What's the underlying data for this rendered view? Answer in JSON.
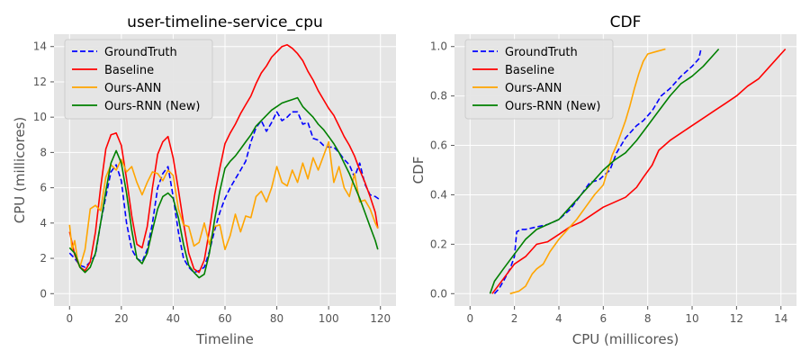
{
  "chart_data": [
    {
      "type": "line",
      "title": "user-timeline-service_cpu",
      "xlabel": "Timeline",
      "ylabel": "CPU (millicores)",
      "xlim": [
        -6,
        126
      ],
      "ylim": [
        -0.7,
        14.7
      ],
      "xticks": [
        0,
        20,
        40,
        60,
        80,
        100,
        120
      ],
      "yticks": [
        0,
        2,
        4,
        6,
        8,
        10,
        12,
        14
      ],
      "grid": true,
      "legend_position": "top-left",
      "series": [
        {
          "name": "GroundTruth",
          "color": "#0000ff",
          "dash": "dashed",
          "x": [
            0,
            2,
            4,
            6,
            8,
            10,
            12,
            14,
            16,
            18,
            20,
            22,
            24,
            26,
            28,
            30,
            32,
            34,
            36,
            38,
            40,
            42,
            44,
            46,
            48,
            50,
            52,
            54,
            56,
            58,
            60,
            62,
            64,
            66,
            68,
            70,
            72,
            74,
            76,
            78,
            80,
            82,
            84,
            86,
            88,
            90,
            92,
            94,
            96,
            98,
            100,
            102,
            104,
            106,
            108,
            110,
            112,
            114,
            116,
            118,
            120
          ],
          "y": [
            2.3,
            2.0,
            1.6,
            1.5,
            1.8,
            2.2,
            4.0,
            5.5,
            6.9,
            7.3,
            6.4,
            4.0,
            2.5,
            2.0,
            1.8,
            2.5,
            4.0,
            6.0,
            6.8,
            7.2,
            5.5,
            3.5,
            2.0,
            1.5,
            1.2,
            1.3,
            1.5,
            2.4,
            3.6,
            4.6,
            5.4,
            6.0,
            6.5,
            7.0,
            7.5,
            8.6,
            9.4,
            9.8,
            9.2,
            9.7,
            10.3,
            9.8,
            10.0,
            10.3,
            10.3,
            9.6,
            9.7,
            8.8,
            8.7,
            8.4,
            8.3,
            8.3,
            8.0,
            7.6,
            7.3,
            6.6,
            7.4,
            6.2,
            5.6,
            5.5,
            5.3
          ]
        },
        {
          "name": "Baseline",
          "color": "#ff0000",
          "dash": "solid",
          "x": [
            0,
            2,
            4,
            6,
            8,
            10,
            12,
            14,
            16,
            18,
            20,
            22,
            24,
            26,
            28,
            30,
            32,
            34,
            36,
            38,
            40,
            42,
            44,
            46,
            48,
            50,
            52,
            54,
            56,
            58,
            60,
            62,
            64,
            66,
            68,
            70,
            72,
            74,
            76,
            78,
            80,
            82,
            84,
            86,
            88,
            90,
            92,
            94,
            96,
            98,
            100,
            102,
            104,
            106,
            108,
            110,
            112,
            114,
            116,
            118,
            119
          ],
          "y": [
            3.5,
            2.2,
            1.5,
            1.3,
            1.8,
            3.5,
            6.0,
            8.2,
            9.0,
            9.1,
            8.4,
            6.5,
            4.4,
            2.8,
            2.6,
            3.8,
            6.0,
            7.9,
            8.6,
            8.9,
            7.7,
            5.9,
            4.0,
            2.3,
            1.4,
            1.2,
            1.9,
            3.6,
            5.6,
            7.1,
            8.5,
            9.1,
            9.6,
            10.2,
            10.7,
            11.2,
            11.9,
            12.5,
            12.9,
            13.4,
            13.7,
            14.0,
            14.1,
            13.9,
            13.6,
            13.2,
            12.6,
            12.1,
            11.5,
            11.0,
            10.5,
            10.1,
            9.5,
            8.9,
            8.4,
            7.8,
            7.0,
            6.3,
            5.5,
            4.6,
            3.7
          ]
        },
        {
          "name": "Ours-ANN",
          "color": "#ffa500",
          "dash": "solid",
          "x": [
            0,
            1,
            2,
            3,
            4,
            6,
            8,
            10,
            12,
            14,
            16,
            18,
            20,
            22,
            24,
            26,
            28,
            30,
            32,
            34,
            36,
            38,
            40,
            42,
            44,
            46,
            48,
            50,
            52,
            54,
            56,
            58,
            60,
            62,
            64,
            66,
            68,
            70,
            72,
            74,
            76,
            78,
            80,
            82,
            84,
            86,
            88,
            90,
            92,
            94,
            96,
            98,
            100,
            102,
            104,
            106,
            108,
            110,
            112,
            114,
            116,
            118,
            119
          ],
          "y": [
            3.9,
            2.5,
            3.0,
            2.0,
            1.5,
            2.5,
            4.8,
            5.0,
            4.7,
            6.6,
            7.3,
            7.0,
            7.6,
            6.9,
            7.2,
            6.3,
            5.6,
            6.3,
            6.9,
            6.8,
            6.4,
            7.0,
            6.7,
            4.8,
            3.9,
            3.8,
            2.7,
            2.9,
            4.0,
            2.8,
            3.8,
            3.9,
            2.5,
            3.3,
            4.5,
            3.5,
            4.4,
            4.3,
            5.5,
            5.8,
            5.2,
            6.0,
            7.2,
            6.3,
            6.1,
            7.0,
            6.3,
            7.4,
            6.5,
            7.7,
            7.0,
            7.8,
            8.6,
            6.3,
            7.2,
            6.0,
            5.5,
            6.8,
            5.2,
            5.3,
            4.8,
            4.0,
            3.7
          ]
        },
        {
          "name": "Ours-RNN (New)",
          "color": "#008000",
          "dash": "solid",
          "x": [
            0,
            2,
            4,
            6,
            8,
            10,
            12,
            14,
            16,
            18,
            20,
            22,
            24,
            26,
            28,
            30,
            32,
            34,
            36,
            38,
            40,
            42,
            44,
            46,
            48,
            50,
            52,
            54,
            56,
            58,
            60,
            62,
            64,
            66,
            68,
            70,
            72,
            74,
            76,
            78,
            80,
            82,
            84,
            86,
            88,
            90,
            92,
            94,
            96,
            98,
            100,
            102,
            104,
            106,
            108,
            110,
            112,
            114,
            116,
            118,
            119
          ],
          "y": [
            2.6,
            2.3,
            1.5,
            1.2,
            1.5,
            2.3,
            4.0,
            5.8,
            7.4,
            8.1,
            7.4,
            5.7,
            3.6,
            2.0,
            1.7,
            2.3,
            3.6,
            4.8,
            5.5,
            5.7,
            5.4,
            4.3,
            2.8,
            1.6,
            1.2,
            0.9,
            1.1,
            2.3,
            4.2,
            5.8,
            7.1,
            7.5,
            7.8,
            8.2,
            8.6,
            9.0,
            9.5,
            9.8,
            10.1,
            10.4,
            10.6,
            10.8,
            10.9,
            11.0,
            11.1,
            10.6,
            10.3,
            10.0,
            9.6,
            9.3,
            8.9,
            8.5,
            8.0,
            7.4,
            6.8,
            6.1,
            5.4,
            4.6,
            3.8,
            3.0,
            2.5
          ]
        }
      ]
    },
    {
      "type": "line",
      "title": "CDF",
      "xlabel": "CPU (millicores)",
      "ylabel": "CDF",
      "xlim": [
        -0.7,
        14.7
      ],
      "ylim": [
        -0.05,
        1.05
      ],
      "xticks": [
        0,
        2,
        4,
        6,
        8,
        10,
        12,
        14
      ],
      "yticks": [
        0.0,
        0.2,
        0.4,
        0.6,
        0.8,
        1.0
      ],
      "ytick_labels": [
        "0.0",
        "0.2",
        "0.4",
        "0.6",
        "0.8",
        "1.0"
      ],
      "grid": true,
      "legend_position": "top-left",
      "series": [
        {
          "name": "GroundTruth",
          "color": "#0000ff",
          "dash": "dashed",
          "x": [
            1.1,
            1.3,
            1.5,
            1.8,
            2.0,
            2.1,
            2.3,
            2.5,
            3.0,
            3.5,
            4.0,
            4.5,
            5.0,
            5.4,
            5.8,
            6.3,
            6.6,
            7.0,
            7.5,
            7.8,
            8.2,
            8.6,
            9.0,
            9.5,
            10.0,
            10.3,
            10.4
          ],
          "y": [
            0.0,
            0.02,
            0.05,
            0.1,
            0.15,
            0.25,
            0.26,
            0.26,
            0.27,
            0.28,
            0.3,
            0.34,
            0.4,
            0.45,
            0.46,
            0.5,
            0.57,
            0.63,
            0.68,
            0.7,
            0.74,
            0.8,
            0.83,
            0.88,
            0.92,
            0.95,
            0.99
          ]
        },
        {
          "name": "Baseline",
          "color": "#ff0000",
          "dash": "solid",
          "x": [
            1.0,
            1.5,
            2.0,
            2.5,
            3.0,
            3.5,
            4.0,
            4.5,
            5.0,
            5.5,
            6.0,
            6.5,
            7.0,
            7.5,
            7.8,
            8.2,
            8.5,
            9.0,
            9.5,
            10.0,
            10.5,
            11.0,
            11.5,
            12.0,
            12.5,
            13.0,
            13.5,
            14.0,
            14.2
          ],
          "y": [
            0.0,
            0.06,
            0.12,
            0.15,
            0.2,
            0.21,
            0.24,
            0.27,
            0.29,
            0.32,
            0.35,
            0.37,
            0.39,
            0.43,
            0.47,
            0.52,
            0.58,
            0.62,
            0.65,
            0.68,
            0.71,
            0.74,
            0.77,
            0.8,
            0.84,
            0.87,
            0.92,
            0.97,
            0.99
          ]
        },
        {
          "name": "Ours-ANN",
          "color": "#ffa500",
          "dash": "solid",
          "x": [
            1.8,
            2.2,
            2.5,
            2.8,
            3.0,
            3.3,
            3.6,
            4.0,
            4.4,
            4.8,
            5.2,
            5.6,
            6.0,
            6.2,
            6.4,
            6.6,
            6.8,
            7.0,
            7.2,
            7.4,
            7.6,
            7.8,
            8.0,
            8.4,
            8.8
          ],
          "y": [
            0.0,
            0.01,
            0.03,
            0.08,
            0.1,
            0.12,
            0.17,
            0.22,
            0.26,
            0.3,
            0.35,
            0.4,
            0.44,
            0.5,
            0.56,
            0.6,
            0.65,
            0.7,
            0.76,
            0.83,
            0.89,
            0.94,
            0.97,
            0.98,
            0.99
          ]
        },
        {
          "name": "Ours-RNN (New)",
          "color": "#008000",
          "dash": "solid",
          "x": [
            0.9,
            1.1,
            1.5,
            2.0,
            2.5,
            3.0,
            3.5,
            4.0,
            4.5,
            5.0,
            5.5,
            6.0,
            6.5,
            7.0,
            7.5,
            8.0,
            8.5,
            9.0,
            9.5,
            10.0,
            10.5,
            11.0,
            11.2
          ],
          "y": [
            0.0,
            0.05,
            0.1,
            0.16,
            0.22,
            0.26,
            0.28,
            0.3,
            0.35,
            0.4,
            0.45,
            0.5,
            0.54,
            0.57,
            0.62,
            0.68,
            0.74,
            0.8,
            0.85,
            0.88,
            0.92,
            0.97,
            0.99
          ]
        }
      ]
    }
  ]
}
